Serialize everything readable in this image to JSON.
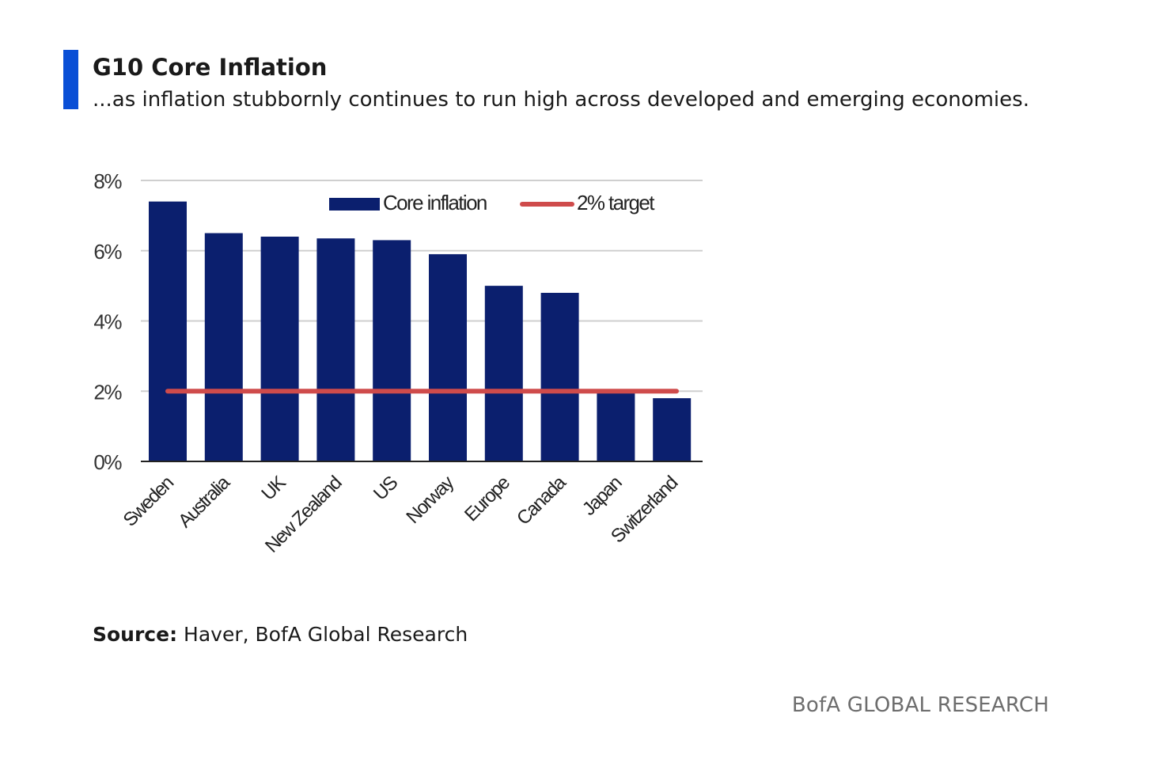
{
  "header": {
    "title": "G10 Core Inflation",
    "subtitle": "...as inflation stubbornly continues to run high across developed and emerging economies."
  },
  "source": {
    "label": "Source:",
    "text": "Haver, BofA Global Research"
  },
  "footer": {
    "brand": "BofA GLOBAL RESEARCH"
  },
  "colors": {
    "accent": "#0a4fd6",
    "bar": "#0b1f6e",
    "target_line": "#cf4b4b",
    "gridline": "#cfcfcf",
    "axis": "#222222"
  },
  "chart_data": {
    "type": "bar",
    "categories": [
      "Sweden",
      "Australia",
      "UK",
      "New Zealand",
      "US",
      "Norway",
      "Europe",
      "Canada",
      "Japan",
      "Switzerland"
    ],
    "series": [
      {
        "name": "Core inflation",
        "values": [
          7.4,
          6.5,
          6.4,
          6.35,
          6.3,
          5.9,
          5.0,
          4.8,
          1.95,
          1.8
        ]
      }
    ],
    "reference_lines": [
      {
        "name": "2% target",
        "value": 2.0
      }
    ],
    "y_ticks": [
      "0%",
      "2%",
      "4%",
      "6%",
      "8%"
    ],
    "y_tick_values": [
      0,
      2,
      4,
      6,
      8
    ],
    "ylim": [
      0,
      8
    ],
    "xlabel": "",
    "ylabel": "",
    "grid": true,
    "legend_position": "top-right"
  }
}
